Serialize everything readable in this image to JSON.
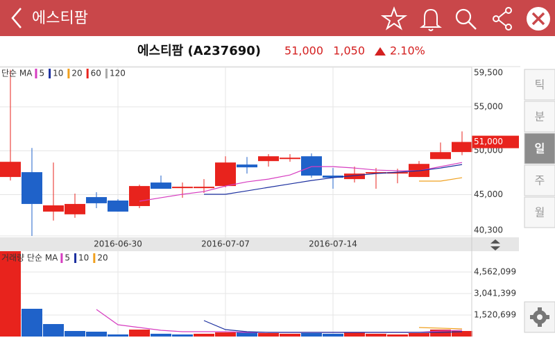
{
  "header": {
    "title": "에스티팜"
  },
  "quote": {
    "name": "에스티팜 (A237690)",
    "price": "51,000",
    "change": "1,050",
    "change_pct": "2.10%"
  },
  "periods": [
    "틱",
    "분",
    "일",
    "주",
    "월"
  ],
  "selected_period": 2,
  "chart_data": [
    {
      "type": "candlestick",
      "legend_title": "단순 MA",
      "categories": [
        null,
        null,
        null,
        null,
        null,
        "2016-06-30",
        null,
        null,
        null,
        null,
        "2016-07-07",
        null,
        null,
        null,
        null,
        "2016-07-14",
        null,
        null,
        null,
        null,
        null,
        null
      ],
      "open": [
        47010,
        47560,
        43070,
        42760,
        44720,
        44330,
        43700,
        46380,
        45800,
        45750,
        45980,
        48430,
        48820,
        49100,
        49370,
        47170,
        46770,
        47480,
        47560,
        47010,
        49050,
        49850
      ],
      "high": [
        59210,
        50310,
        48660,
        45120,
        45280,
        44490,
        46140,
        47170,
        46380,
        46770,
        49370,
        49290,
        49610,
        49610,
        49690,
        48030,
        48190,
        48030,
        47950,
        48820,
        50940,
        52200
      ],
      "low": [
        46610,
        40300,
        42050,
        42360,
        43460,
        43070,
        43460,
        45670,
        44650,
        45200,
        45830,
        47400,
        48190,
        48740,
        46930,
        45670,
        46380,
        45670,
        46300,
        47010,
        49050,
        49500
      ],
      "close": [
        48740,
        43940,
        43780,
        43940,
        44020,
        43070,
        45980,
        45670,
        45900,
        45900,
        48660,
        48110,
        49370,
        49210,
        47170,
        46930,
        47400,
        47560,
        47560,
        48500,
        49840,
        51000
      ],
      "up_color": "#e8231d",
      "down_color": "#1f62c9",
      "series": [
        {
          "name": "5",
          "color": "#d63cc0",
          "values": [
            null,
            null,
            null,
            null,
            null,
            null,
            44250,
            44650,
            45040,
            45350,
            45980,
            46460,
            46770,
            47240,
            48190,
            48190,
            48030,
            47800,
            47720,
            47720,
            48190,
            48660
          ]
        },
        {
          "name": "10",
          "color": "#1b2f9f",
          "values": [
            null,
            null,
            null,
            null,
            null,
            null,
            null,
            null,
            null,
            45040,
            45040,
            45430,
            45830,
            46220,
            46610,
            46930,
            47170,
            47400,
            47560,
            47720,
            48030,
            48430
          ]
        },
        {
          "name": "20",
          "color": "#f0a01e",
          "values": [
            null,
            null,
            null,
            null,
            null,
            null,
            null,
            null,
            null,
            null,
            null,
            null,
            null,
            null,
            null,
            null,
            null,
            null,
            null,
            46540,
            46540,
            46930
          ]
        },
        {
          "name": "60",
          "color": "#e8231d",
          "values": [
            null,
            null,
            null,
            null,
            null,
            null,
            null,
            null,
            null,
            null,
            null,
            null,
            null,
            null,
            null,
            null,
            null,
            null,
            null,
            null,
            null,
            null
          ]
        },
        {
          "name": "120",
          "color": "#aaaaaa",
          "values": [
            null,
            null,
            null,
            null,
            null,
            null,
            null,
            null,
            null,
            null,
            null,
            null,
            null,
            null,
            null,
            null,
            null,
            null,
            null,
            null,
            null,
            null
          ]
        }
      ],
      "ylim": [
        40300,
        59500
      ],
      "yticks": [
        {
          "value": 59500,
          "label": "59,500"
        },
        {
          "value": 55000,
          "label": "55,000"
        },
        {
          "value": 50000,
          "label": "50,000"
        },
        {
          "value": 45000,
          "label": "45,000"
        },
        {
          "value": 40300,
          "label": "40,300"
        }
      ],
      "grid": true
    },
    {
      "type": "bar",
      "legend_title": "거래량 단순 MA",
      "values": [
        6034000,
        1962000,
        883000,
        392000,
        343000,
        147000,
        491000,
        196000,
        147000,
        196000,
        294000,
        294000,
        245000,
        196000,
        245000,
        196000,
        294000,
        196000,
        147000,
        245000,
        491000,
        392000
      ],
      "up": [
        true,
        false,
        false,
        false,
        false,
        false,
        true,
        false,
        false,
        true,
        true,
        false,
        true,
        true,
        false,
        false,
        true,
        true,
        true,
        true,
        true,
        true
      ],
      "series": [
        {
          "name": "5",
          "color": "#d63cc0",
          "values": [
            null,
            null,
            null,
            null,
            1913000,
            834000,
            638000,
            441000,
            343000,
            343000,
            343000,
            294000,
            294000,
            294000,
            294000,
            294000,
            294000,
            294000,
            294000,
            294000,
            392000,
            441000
          ]
        },
        {
          "name": "10",
          "color": "#1b2f9f",
          "values": [
            null,
            null,
            null,
            null,
            null,
            null,
            null,
            null,
            null,
            1128000,
            491000,
            343000,
            294000,
            294000,
            294000,
            294000,
            294000,
            294000,
            294000,
            294000,
            294000,
            343000
          ]
        },
        {
          "name": "20",
          "color": "#f0a01e",
          "values": [
            null,
            null,
            null,
            null,
            null,
            null,
            null,
            null,
            null,
            null,
            null,
            null,
            null,
            null,
            null,
            null,
            null,
            null,
            null,
            638000,
            589000,
            540000
          ]
        }
      ],
      "ylim": [
        0,
        6034000
      ],
      "yticks": [
        {
          "value": 4562099,
          "label": "4,562,099"
        },
        {
          "value": 3041399,
          "label": "3,041,399"
        },
        {
          "value": 1520699,
          "label": "1,520,699"
        }
      ],
      "grid": true
    }
  ]
}
